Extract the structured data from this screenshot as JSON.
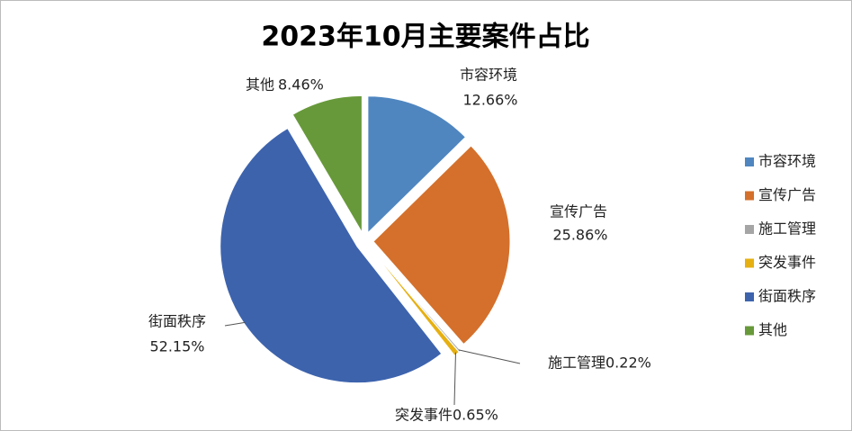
{
  "chart_data": {
    "type": "pie",
    "title": "2023年10月主要案件占比",
    "categories": [
      "市容环境",
      "宣传广告",
      "施工管理",
      "突发事件",
      "街面秩序",
      "其他"
    ],
    "values": [
      12.66,
      25.86,
      0.22,
      0.65,
      52.15,
      8.46
    ],
    "value_labels": [
      "12.66%",
      "25.86%",
      "0.22%",
      "0.65%",
      "52.15%",
      "8.46%"
    ],
    "colors": [
      "#4f86c0",
      "#d4702b",
      "#a5a5a5",
      "#e6b012",
      "#3d63ad",
      "#67993a"
    ],
    "legend": "right"
  }
}
